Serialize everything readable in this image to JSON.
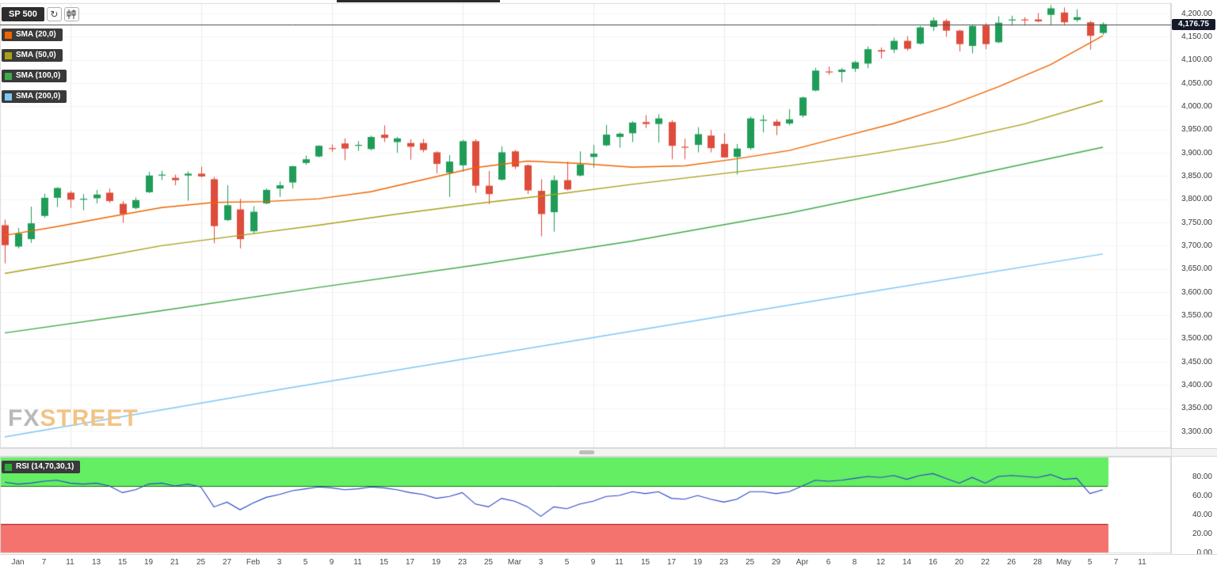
{
  "toolbar": {
    "symbol": "SP 500",
    "refresh_glyph": "↻"
  },
  "legend": {
    "smas": [
      {
        "label": "SMA (20,0)",
        "color": "#f06400"
      },
      {
        "label": "SMA (50,0)",
        "color": "#a8a018"
      },
      {
        "label": "SMA (100,0)",
        "color": "#3faa46"
      },
      {
        "label": "SMA (200,0)",
        "color": "#7dc7f4"
      }
    ],
    "rsi": {
      "label": "RSI (14,70,30,1)",
      "color": "#2daa3c"
    }
  },
  "watermark": {
    "fx": "FX",
    "street": "STREET"
  },
  "price_axis": {
    "labels": [
      "4,200.00",
      "4,150.00",
      "4,100.00",
      "4,050.00",
      "4,000.00",
      "3,950.00",
      "3,900.00",
      "3,850.00",
      "3,800.00",
      "3,750.00",
      "3,700.00",
      "3,650.00",
      "3,600.00",
      "3,550.00",
      "3,500.00",
      "3,450.00",
      "3,400.00",
      "3,350.00",
      "3,300.00"
    ],
    "last_price_label": "4,176.75"
  },
  "rsi_axis": {
    "labels": [
      "80.00",
      "60.00",
      "40.00",
      "20.00",
      "0.00"
    ]
  },
  "colors": {
    "up": "#1f9d58",
    "down": "#de4c3c",
    "last_price_line": "#4d4d4d",
    "tag_bg": "#141a2a",
    "rsi_line": "#2b46c8",
    "rsi_overbought_fill": "#63ee63",
    "rsi_oversold_fill": "#f4736e",
    "rsi_overbought_edge": "#117711",
    "rsi_oversold_edge": "#991111",
    "grid": "#ebebeb"
  },
  "chart_data": {
    "type": "candlestick",
    "title": "SP 500",
    "price_range": [
      3300,
      4200
    ],
    "y_tick_step": 50,
    "last_price": 4176.75,
    "x_labels": [
      {
        "t": "Jan",
        "i": 1
      },
      {
        "t": "7",
        "i": 3
      },
      {
        "t": "11",
        "i": 5
      },
      {
        "t": "13",
        "i": 7
      },
      {
        "t": "15",
        "i": 9
      },
      {
        "t": "19",
        "i": 11
      },
      {
        "t": "21",
        "i": 13
      },
      {
        "t": "25",
        "i": 15
      },
      {
        "t": "27",
        "i": 17
      },
      {
        "t": "Feb",
        "i": 19
      },
      {
        "t": "3",
        "i": 21
      },
      {
        "t": "5",
        "i": 23
      },
      {
        "t": "9",
        "i": 25
      },
      {
        "t": "11",
        "i": 27
      },
      {
        "t": "15",
        "i": 29
      },
      {
        "t": "17",
        "i": 31
      },
      {
        "t": "19",
        "i": 33
      },
      {
        "t": "23",
        "i": 35
      },
      {
        "t": "25",
        "i": 37
      },
      {
        "t": "Mar",
        "i": 39
      },
      {
        "t": "3",
        "i": 41
      },
      {
        "t": "5",
        "i": 43
      },
      {
        "t": "9",
        "i": 45
      },
      {
        "t": "11",
        "i": 47
      },
      {
        "t": "15",
        "i": 49
      },
      {
        "t": "17",
        "i": 51
      },
      {
        "t": "19",
        "i": 53
      },
      {
        "t": "23",
        "i": 55
      },
      {
        "t": "25",
        "i": 57
      },
      {
        "t": "29",
        "i": 59
      },
      {
        "t": "Apr",
        "i": 61
      },
      {
        "t": "6",
        "i": 63
      },
      {
        "t": "8",
        "i": 65
      },
      {
        "t": "12",
        "i": 67
      },
      {
        "t": "14",
        "i": 69
      },
      {
        "t": "16",
        "i": 71
      },
      {
        "t": "20",
        "i": 73
      },
      {
        "t": "22",
        "i": 75
      },
      {
        "t": "26",
        "i": 77
      },
      {
        "t": "28",
        "i": 79
      },
      {
        "t": "May",
        "i": 81
      },
      {
        "t": "5",
        "i": 83
      },
      {
        "t": "7",
        "i": 85
      },
      {
        "t": "11",
        "i": 87
      }
    ],
    "candles": [
      [
        3744,
        3756,
        3662,
        3701
      ],
      [
        3698,
        3738,
        3694,
        3726
      ],
      [
        3714,
        3784,
        3706,
        3748
      ],
      [
        3764,
        3812,
        3760,
        3803
      ],
      [
        3803,
        3826,
        3783,
        3824
      ],
      [
        3814,
        3818,
        3781,
        3799
      ],
      [
        3799,
        3811,
        3776,
        3801
      ],
      [
        3802,
        3820,
        3791,
        3810
      ],
      [
        3814,
        3823,
        3792,
        3796
      ],
      [
        3790,
        3796,
        3749,
        3768
      ],
      [
        3781,
        3804,
        3778,
        3798
      ],
      [
        3815,
        3859,
        3813,
        3851
      ],
      [
        3851,
        3861,
        3841,
        3853
      ],
      [
        3846,
        3853,
        3830,
        3841
      ],
      [
        3851,
        3860,
        3797,
        3855
      ],
      [
        3855,
        3870,
        3847,
        3849
      ],
      [
        3843,
        3848,
        3705,
        3742
      ],
      [
        3755,
        3830,
        3753,
        3787
      ],
      [
        3778,
        3801,
        3694,
        3714
      ],
      [
        3731,
        3785,
        3725,
        3773
      ],
      [
        3791,
        3823,
        3789,
        3820
      ],
      [
        3823,
        3838,
        3805,
        3830
      ],
      [
        3836,
        3872,
        3823,
        3871
      ],
      [
        3878,
        3894,
        3874,
        3886
      ],
      [
        3892,
        3916,
        3890,
        3915
      ],
      [
        3910,
        3918,
        3902,
        3908
      ],
      [
        3920,
        3931,
        3884,
        3909
      ],
      [
        3916,
        3925,
        3904,
        3917
      ],
      [
        3908,
        3937,
        3905,
        3934
      ],
      [
        3939,
        3959,
        3923,
        3932
      ],
      [
        3923,
        3934,
        3900,
        3931
      ],
      [
        3921,
        3929,
        3885,
        3913
      ],
      [
        3921,
        3930,
        3901,
        3906
      ],
      [
        3901,
        3903,
        3856,
        3876
      ],
      [
        3857,
        3895,
        3805,
        3881
      ],
      [
        3873,
        3928,
        3859,
        3925
      ],
      [
        3925,
        3929,
        3814,
        3829
      ],
      [
        3829,
        3861,
        3789,
        3811
      ],
      [
        3842,
        3914,
        3840,
        3901
      ],
      [
        3903,
        3906,
        3865,
        3870
      ],
      [
        3873,
        3875,
        3811,
        3819
      ],
      [
        3818,
        3843,
        3720,
        3768
      ],
      [
        3772,
        3851,
        3730,
        3841
      ],
      [
        3841,
        3881,
        3819,
        3821
      ],
      [
        3851,
        3903,
        3849,
        3875
      ],
      [
        3891,
        3917,
        3868,
        3898
      ],
      [
        3916,
        3960,
        3914,
        3939
      ],
      [
        3934,
        3944,
        3911,
        3941
      ],
      [
        3942,
        3968,
        3923,
        3965
      ],
      [
        3966,
        3981,
        3953,
        3962
      ],
      [
        3962,
        3983,
        3922,
        3974
      ],
      [
        3966,
        3970,
        3886,
        3915
      ],
      [
        3913,
        3930,
        3886,
        3912
      ],
      [
        3917,
        3955,
        3901,
        3940
      ],
      [
        3937,
        3949,
        3901,
        3910
      ],
      [
        3919,
        3942,
        3889,
        3890
      ],
      [
        3891,
        3919,
        3853,
        3909
      ],
      [
        3910,
        3978,
        3906,
        3974
      ],
      [
        3969,
        3981,
        3944,
        3971
      ],
      [
        3967,
        3972,
        3938,
        3958
      ],
      [
        3963,
        3994,
        3959,
        3972
      ],
      [
        3980,
        4021,
        3976,
        4019
      ],
      [
        4034,
        4083,
        4032,
        4077
      ],
      [
        4075,
        4086,
        4068,
        4073
      ],
      [
        4074,
        4083,
        4052,
        4079
      ],
      [
        4081,
        4098,
        4074,
        4095
      ],
      [
        4092,
        4129,
        4082,
        4123
      ],
      [
        4121,
        4127,
        4103,
        4118
      ],
      [
        4122,
        4148,
        4115,
        4141
      ],
      [
        4141,
        4151,
        4120,
        4124
      ],
      [
        4135,
        4173,
        4133,
        4170
      ],
      [
        4171,
        4191,
        4162,
        4185
      ],
      [
        4184,
        4188,
        4150,
        4163
      ],
      [
        4163,
        4165,
        4118,
        4134
      ],
      [
        4130,
        4175,
        4114,
        4173
      ],
      [
        4174,
        4179,
        4123,
        4134
      ],
      [
        4138,
        4194,
        4136,
        4180
      ],
      [
        4185,
        4195,
        4174,
        4187
      ],
      [
        4187,
        4192,
        4174,
        4186
      ],
      [
        4187,
        4201,
        4181,
        4183
      ],
      [
        4197,
        4218,
        4176,
        4211
      ],
      [
        4202,
        4213,
        4174,
        4181
      ],
      [
        4186,
        4209,
        4182,
        4192
      ],
      [
        4181,
        4184,
        4122,
        4152
      ],
      [
        4158,
        4181,
        4154,
        4177
      ]
    ],
    "sma_series": [
      {
        "name": "SMA (20,0)",
        "color": "#f06400",
        "points": [
          [
            0,
            3722
          ],
          [
            4,
            3741
          ],
          [
            8,
            3762
          ],
          [
            12,
            3782
          ],
          [
            16,
            3793
          ],
          [
            20,
            3795
          ],
          [
            24,
            3801
          ],
          [
            28,
            3816
          ],
          [
            32,
            3842
          ],
          [
            36,
            3868
          ],
          [
            40,
            3882
          ],
          [
            44,
            3877
          ],
          [
            48,
            3869
          ],
          [
            52,
            3872
          ],
          [
            56,
            3887
          ],
          [
            60,
            3905
          ],
          [
            64,
            3934
          ],
          [
            68,
            3963
          ],
          [
            72,
            3999
          ],
          [
            76,
            4042
          ],
          [
            80,
            4090
          ],
          [
            84,
            4152
          ]
        ]
      },
      {
        "name": "SMA (50,0)",
        "color": "#a8a018",
        "points": [
          [
            0,
            3640
          ],
          [
            6,
            3669
          ],
          [
            12,
            3700
          ],
          [
            18,
            3722
          ],
          [
            24,
            3744
          ],
          [
            30,
            3768
          ],
          [
            36,
            3790
          ],
          [
            42,
            3810
          ],
          [
            48,
            3832
          ],
          [
            54,
            3852
          ],
          [
            60,
            3872
          ],
          [
            66,
            3896
          ],
          [
            72,
            3924
          ],
          [
            78,
            3962
          ],
          [
            84,
            4012
          ]
        ]
      },
      {
        "name": "SMA (100,0)",
        "color": "#3faa46",
        "points": [
          [
            0,
            3512
          ],
          [
            12,
            3560
          ],
          [
            24,
            3610
          ],
          [
            36,
            3658
          ],
          [
            48,
            3710
          ],
          [
            60,
            3770
          ],
          [
            72,
            3840
          ],
          [
            84,
            3912
          ]
        ]
      },
      {
        "name": "SMA (200,0)",
        "color": "#7dc7f4",
        "points": [
          [
            0,
            3288
          ],
          [
            21,
            3390
          ],
          [
            42,
            3488
          ],
          [
            63,
            3586
          ],
          [
            84,
            3682
          ]
        ]
      }
    ],
    "rsi": {
      "label": "RSI (14,70,30,1)",
      "range": [
        0,
        100
      ],
      "overbought": 70,
      "oversold": 30,
      "values": [
        74,
        72,
        73,
        75,
        76,
        73,
        72,
        73,
        70,
        63,
        66,
        72,
        73,
        70,
        72,
        69,
        48,
        53,
        45,
        52,
        58,
        61,
        65,
        67,
        69,
        68,
        66,
        67,
        69,
        68,
        66,
        63,
        61,
        57,
        59,
        63,
        51,
        48,
        57,
        54,
        48,
        38,
        48,
        46,
        51,
        54,
        59,
        60,
        64,
        62,
        64,
        57,
        56,
        60,
        56,
        53,
        56,
        64,
        64,
        62,
        64,
        70,
        76,
        75,
        76,
        78,
        80,
        79,
        81,
        77,
        81,
        83,
        78,
        73,
        79,
        73,
        80,
        81,
        80,
        79,
        82,
        77,
        78,
        62,
        66
      ]
    }
  }
}
